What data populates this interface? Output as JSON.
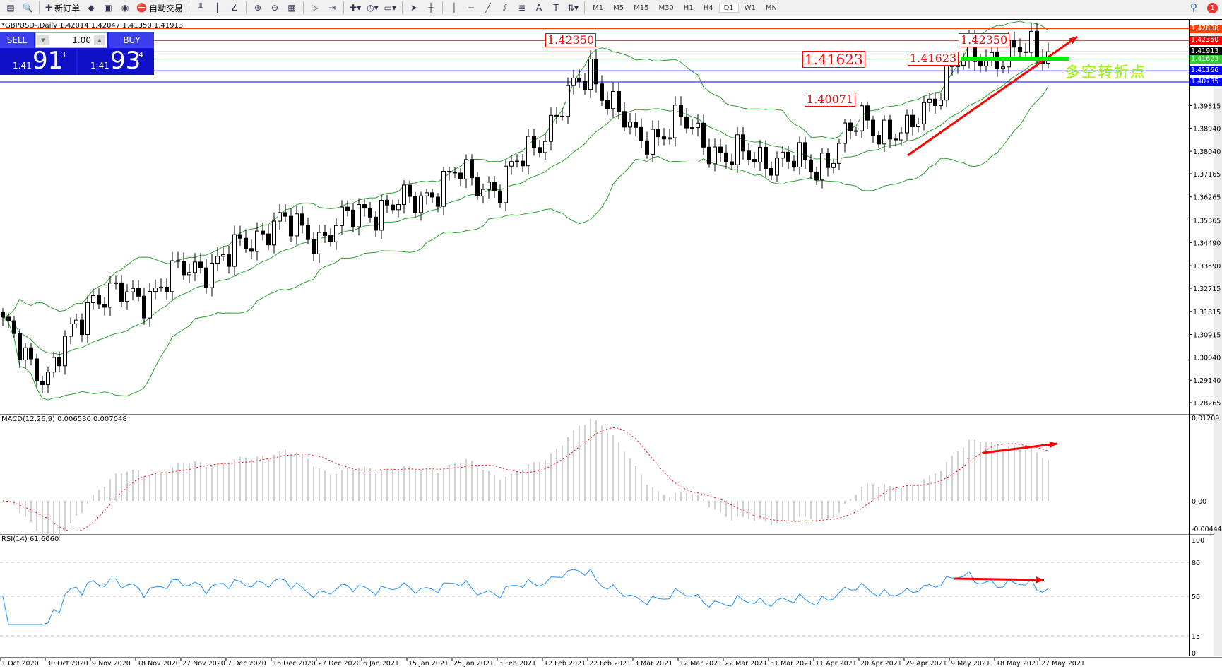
{
  "toolbar": {
    "items": [
      {
        "icon": "window-icon"
      },
      {
        "icon": "navigator-icon"
      },
      {
        "icon": "new-order-icon",
        "label": "新订单"
      },
      {
        "icon": "market-watch-icon"
      },
      {
        "icon": "terminal-icon"
      },
      {
        "icon": "signals-icon"
      },
      {
        "icon": "auto-trading-icon",
        "label": "自动交易"
      },
      {
        "icon": "bar-chart-icon"
      },
      {
        "icon": "candlestick-icon"
      },
      {
        "icon": "line-chart-icon"
      },
      {
        "icon": "zoom-in-icon"
      },
      {
        "icon": "zoom-out-icon"
      },
      {
        "icon": "tile-windows-icon"
      },
      {
        "icon": "auto-scroll-icon"
      },
      {
        "icon": "chart-shift-icon"
      },
      {
        "icon": "indicators-icon"
      },
      {
        "icon": "periods-icon"
      },
      {
        "icon": "templates-icon"
      },
      {
        "icon": "cursor-icon"
      },
      {
        "icon": "crosshair-icon"
      },
      {
        "icon": "vertical-line-icon"
      },
      {
        "icon": "horizontal-line-icon"
      },
      {
        "icon": "trendline-icon"
      },
      {
        "icon": "equidistant-channel-icon"
      },
      {
        "icon": "fibonacci-icon"
      },
      {
        "icon": "text-icon"
      },
      {
        "icon": "text-label-icon"
      },
      {
        "icon": "arrows-icon"
      }
    ],
    "timeframes": [
      "M1",
      "M5",
      "M15",
      "M30",
      "H1",
      "H4",
      "D1",
      "W1",
      "MN"
    ],
    "active_timeframe": "D1",
    "notification_count": "1"
  },
  "chart": {
    "title": "*GBPUSD-,Daily  1.42014 1.42047 1.41350 1.41913",
    "one_click": {
      "sell": "SELL",
      "buy": "BUY",
      "lots": "1.00",
      "sell_prefix": "1.41",
      "sell_big": "91",
      "sell_sup": "3",
      "buy_prefix": "1.41",
      "buy_big": "93",
      "buy_sup": "4"
    },
    "annotation_text": "多空转折点",
    "tags": [
      "1.42350",
      "1.41623",
      "1.40071",
      "1.41623",
      "1.42350"
    ]
  },
  "chart_data": {
    "type": "candlestick",
    "symbol": "GBPUSD",
    "timeframe": "Daily",
    "ylim": [
      1.28265,
      1.42808
    ],
    "y_ticks": [
      "1.39815",
      "1.38940",
      "1.38040",
      "1.37165",
      "1.36265",
      "1.35365",
      "1.34490",
      "1.33590",
      "1.32715",
      "1.31815",
      "1.30915",
      "1.30040",
      "1.29140",
      "1.28265"
    ],
    "x_ticks": [
      "1 Oct 2020",
      "30 Oct 2020",
      "9 Nov 2020",
      "18 Nov 2020",
      "27 Nov 2020",
      "7 Dec 2020",
      "16 Dec 2020",
      "27 Dec 2020",
      "6 Jan 2021",
      "15 Jan 2021",
      "25 Jan 2021",
      "3 Feb 2021",
      "12 Feb 2021",
      "22 Feb 2021",
      "3 Mar 2021",
      "12 Mar 2021",
      "22 Mar 2021",
      "31 Mar 2021",
      "11 Apr 2021",
      "20 Apr 2021",
      "29 Apr 2021",
      "9 May 2021",
      "18 May 2021",
      "27 May 2021"
    ],
    "closes_at_ticks": [
      1.3114,
      1.2921,
      1.3248,
      1.3233,
      1.3337,
      1.339,
      1.353,
      1.347,
      1.3575,
      1.36,
      1.371,
      1.3664,
      1.3886,
      1.4124,
      1.3842,
      1.3916,
      1.378,
      1.378,
      1.374,
      1.392,
      1.386,
      1.4139,
      1.4183,
      1.4191
    ],
    "last": {
      "open": 1.42014,
      "high": 1.42047,
      "low": 1.4135,
      "close": 1.41913
    },
    "horizontal_lines": [
      {
        "price": "1.42808",
        "color": "#ff4000"
      },
      {
        "price": "1.42350",
        "color": "#ff0000"
      },
      {
        "price": "1.41913",
        "color": "#000000",
        "line": "#c0c0c0"
      },
      {
        "price": "1.41623",
        "color": "#33cc33"
      },
      {
        "price": "1.41166",
        "color": "#0000ff"
      },
      {
        "price": "1.40735",
        "color": "#0000ff"
      }
    ],
    "overlay": "Bollinger Bands",
    "band_color": "#2ca02c",
    "macd": {
      "label": "MACD(12,26,9) 0.006530 0.007048",
      "ylim": [
        -0.004446,
        0.01209
      ],
      "ticks": [
        "0.01209",
        "0.00",
        "-0.004446"
      ],
      "hist_color": "#c0c0c0",
      "signal_color": "#ff0000"
    },
    "rsi": {
      "label": "RSI(14) 61.6060",
      "levels": [
        "100",
        "80",
        "50",
        "15",
        "0"
      ],
      "color": "#1e90ff"
    },
    "annotation_color": "#ff0000"
  }
}
